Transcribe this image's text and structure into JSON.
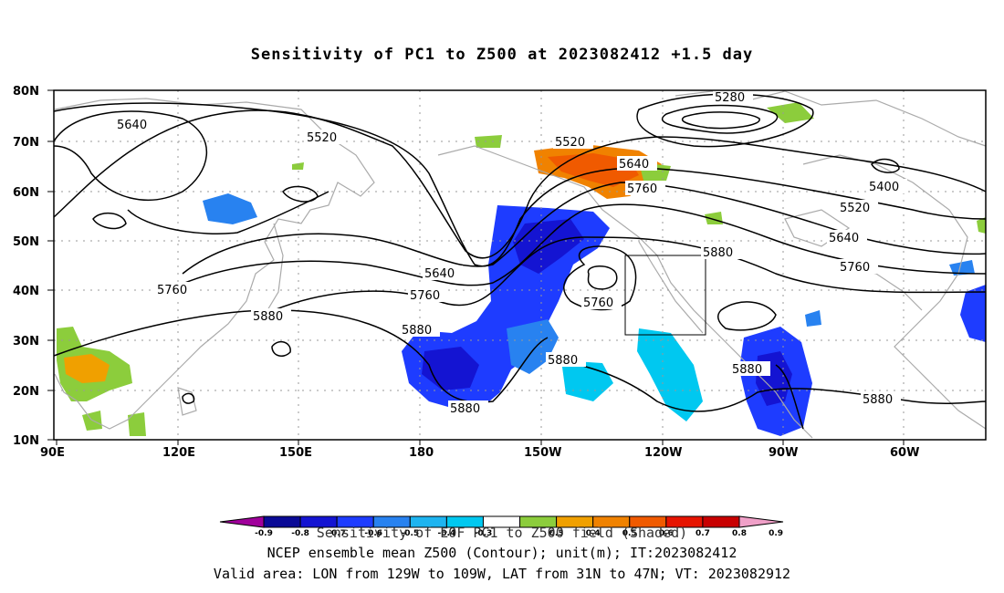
{
  "title": "Sensitivity of PC1 to Z500 at 2023082412 +1.5 day",
  "footer": {
    "line1": "Sensitivity of EOF PC1 to Z500 field (Shaded)",
    "line2": "NCEP ensemble mean Z500 (Contour); unit(m); IT:2023082412",
    "line3": "Valid area: LON from 129W to 109W, LAT from 31N to 47N; VT: 2023082912"
  },
  "axes": {
    "lat_labels": [
      "80N",
      "70N",
      "60N",
      "50N",
      "40N",
      "30N",
      "20N",
      "10N"
    ],
    "lon_labels": [
      "90E",
      "120E",
      "150E",
      "180",
      "150W",
      "120W",
      "90W",
      "60W"
    ]
  },
  "contour_labels": [
    "5640",
    "5520",
    "5520",
    "5640",
    "5760",
    "5280",
    "5400",
    "5520",
    "5640",
    "5760",
    "5640",
    "5760",
    "5880",
    "5760",
    "5880",
    "5880",
    "5880",
    "5880",
    "5880",
    "5880",
    "5760"
  ],
  "colorbar": {
    "labels": [
      "-0.9",
      "-0.8",
      "-0.7",
      "-0.6",
      "-0.5",
      "-0.4",
      "-0.3",
      "0.3",
      "0.4",
      "0.5",
      "0.6",
      "0.7",
      "0.8",
      "0.9"
    ],
    "colors": [
      "#a0009b",
      "#0a0a96",
      "#1414d2",
      "#1e3cff",
      "#2882f0",
      "#1eb4f0",
      "#00c8f0",
      "#ffffff",
      "#8ccd3c",
      "#f0a000",
      "#f08200",
      "#f05a00",
      "#e61400",
      "#c80000",
      "#f0a0c8"
    ]
  },
  "colors": {
    "contour": "#000000",
    "coast": "#aaaaaa",
    "grid": "#999999"
  }
}
